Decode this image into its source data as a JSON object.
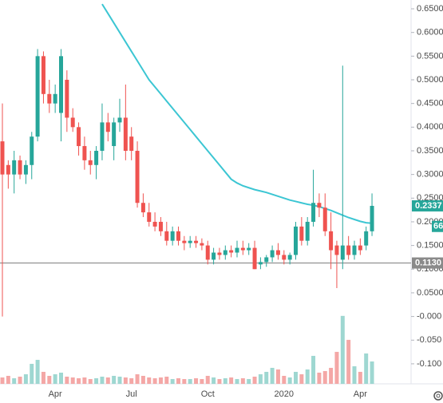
{
  "chart_data": {
    "type": "candlestick",
    "categories": [
      null,
      null,
      null,
      null,
      null,
      null,
      null,
      null,
      null,
      "Apr",
      null,
      null,
      null,
      null,
      null,
      null,
      null,
      null,
      null,
      null,
      null,
      null,
      "Jul",
      null,
      null,
      null,
      null,
      null,
      null,
      null,
      null,
      null,
      null,
      null,
      null,
      "Oct",
      null,
      null,
      null,
      null,
      null,
      null,
      null,
      null,
      null,
      null,
      null,
      null,
      "2020",
      null,
      null,
      null,
      null,
      null,
      null,
      null,
      null,
      null,
      null,
      null,
      null,
      "Apr",
      null,
      null
    ],
    "open": [
      0.37,
      0.32,
      0.3,
      0.33,
      0.3,
      0.32,
      0.38,
      0.55,
      0.47,
      0.45,
      0.43,
      0.5,
      0.42,
      0.4,
      0.36,
      0.33,
      0.32,
      0.35,
      0.41,
      0.36,
      0.41,
      0.42,
      0.38,
      0.35,
      0.24,
      0.22,
      0.2,
      0.2,
      0.18,
      0.16,
      0.18,
      0.16,
      0.155,
      0.16,
      0.155,
      0.15,
      0.12,
      0.135,
      0.13,
      0.14,
      0.135,
      0.145,
      0.14,
      0.145,
      0.11,
      0.115,
      0.125,
      0.14,
      0.13,
      0.12,
      0.13,
      0.19,
      0.16,
      0.2,
      0.24,
      0.23,
      0.18,
      0.15,
      0.12,
      0.15,
      0.13,
      0.15,
      0.15,
      0.18
    ],
    "high": [
      0.45,
      0.33,
      0.35,
      0.34,
      0.33,
      0.39,
      0.565,
      0.56,
      0.5,
      0.49,
      0.565,
      0.52,
      0.44,
      0.41,
      0.38,
      0.35,
      0.36,
      0.45,
      0.43,
      0.42,
      0.46,
      0.49,
      0.4,
      0.37,
      0.26,
      0.24,
      0.22,
      0.21,
      0.2,
      0.19,
      0.19,
      0.17,
      0.17,
      0.17,
      0.165,
      0.16,
      0.145,
      0.145,
      0.15,
      0.15,
      0.16,
      0.16,
      0.155,
      0.16,
      0.125,
      0.13,
      0.15,
      0.155,
      0.14,
      0.135,
      0.2,
      0.21,
      0.21,
      0.31,
      0.26,
      0.26,
      0.22,
      0.16,
      0.53,
      0.17,
      0.16,
      0.165,
      0.19,
      0.26
    ],
    "low": [
      0.0,
      0.27,
      0.26,
      0.29,
      0.28,
      0.29,
      0.37,
      0.45,
      0.43,
      0.43,
      0.37,
      0.39,
      0.39,
      0.34,
      0.31,
      0.3,
      0.29,
      0.33,
      0.37,
      0.33,
      0.39,
      0.33,
      0.33,
      0.23,
      0.21,
      0.19,
      0.18,
      0.17,
      0.15,
      0.15,
      0.15,
      0.14,
      0.145,
      0.145,
      0.14,
      0.11,
      0.11,
      0.12,
      0.12,
      0.125,
      0.125,
      0.13,
      0.13,
      0.1,
      0.1,
      0.105,
      0.115,
      0.12,
      0.11,
      0.11,
      0.12,
      0.15,
      0.15,
      0.19,
      0.21,
      0.17,
      0.1,
      0.06,
      0.1,
      0.12,
      0.12,
      0.13,
      0.14,
      0.17
    ],
    "close": [
      0.3,
      0.3,
      0.33,
      0.3,
      0.32,
      0.38,
      0.55,
      0.47,
      0.45,
      0.47,
      0.55,
      0.42,
      0.4,
      0.36,
      0.33,
      0.32,
      0.35,
      0.41,
      0.39,
      0.41,
      0.42,
      0.35,
      0.35,
      0.24,
      0.22,
      0.2,
      0.19,
      0.18,
      0.16,
      0.18,
      0.16,
      0.155,
      0.16,
      0.155,
      0.15,
      0.12,
      0.135,
      0.13,
      0.14,
      0.135,
      0.145,
      0.14,
      0.145,
      0.1,
      0.115,
      0.125,
      0.14,
      0.13,
      0.12,
      0.13,
      0.19,
      0.16,
      0.2,
      0.24,
      0.23,
      0.18,
      0.14,
      0.13,
      0.15,
      0.13,
      0.15,
      0.14,
      0.18,
      0.2337
    ],
    "volume": [
      8,
      10,
      7,
      9,
      12,
      25,
      30,
      15,
      10,
      12,
      14,
      9,
      8,
      7,
      8,
      6,
      7,
      9,
      8,
      10,
      9,
      8,
      7,
      12,
      10,
      8,
      7,
      8,
      9,
      6,
      7,
      6,
      6,
      7,
      6,
      10,
      8,
      6,
      7,
      8,
      6,
      7,
      6,
      9,
      12,
      15,
      20,
      18,
      10,
      8,
      15,
      12,
      18,
      35,
      14,
      16,
      20,
      40,
      85,
      55,
      22,
      15,
      38,
      28
    ],
    "up_color": "#26a69a",
    "down_color": "#ef5350",
    "up_volume_color": "#9ed7d1",
    "down_volume_color": "#f4a7a6",
    "ma": {
      "color": "#3cc6d3",
      "values": [
        null,
        null,
        null,
        null,
        null,
        null,
        null,
        null,
        null,
        null,
        null,
        null,
        null,
        null,
        null,
        null,
        null,
        0.66,
        0.64,
        0.62,
        0.6,
        0.58,
        0.56,
        0.54,
        0.52,
        0.5,
        0.485,
        0.47,
        0.455,
        0.44,
        0.425,
        0.41,
        0.395,
        0.38,
        0.365,
        0.35,
        0.335,
        0.32,
        0.305,
        0.29,
        0.282,
        0.276,
        0.272,
        0.268,
        0.265,
        0.262,
        0.258,
        0.254,
        0.25,
        0.246,
        0.243,
        0.24,
        0.237,
        0.235,
        0.232,
        0.228,
        0.224,
        0.219,
        0.214,
        0.209,
        0.205,
        0.201,
        0.198,
        0.197
      ]
    },
    "hline": {
      "value": 0.113,
      "label": "0.1130",
      "color": "#8a8a8a"
    },
    "annotation": "66",
    "ylim": [
      -0.1423,
      0.6686
    ],
    "y2lim": [
      0,
      480
    ],
    "yticks": [
      {
        "value": 0.65,
        "label": "0.6500"
      },
      {
        "value": 0.6,
        "label": "0.6000"
      },
      {
        "value": 0.55,
        "label": "0.5500"
      },
      {
        "value": 0.5,
        "label": "0.5000"
      },
      {
        "value": 0.45,
        "label": "0.4500"
      },
      {
        "value": 0.4,
        "label": "0.4000"
      },
      {
        "value": 0.35,
        "label": "0.3500"
      },
      {
        "value": 0.3,
        "label": "0.3000"
      },
      {
        "value": 0.25,
        "label": "0.2500"
      },
      {
        "value": 0.2,
        "label": "0.2000"
      },
      {
        "value": 0.15,
        "label": "0.1500"
      },
      {
        "value": 0.1,
        "label": "0.1000"
      },
      {
        "value": 0.05,
        "label": "0.0500"
      },
      {
        "value": 0,
        "label": "-0.000"
      },
      {
        "value": -0.05,
        "label": "-0.050"
      },
      {
        "value": -0.1,
        "label": "-0.100"
      }
    ]
  }
}
